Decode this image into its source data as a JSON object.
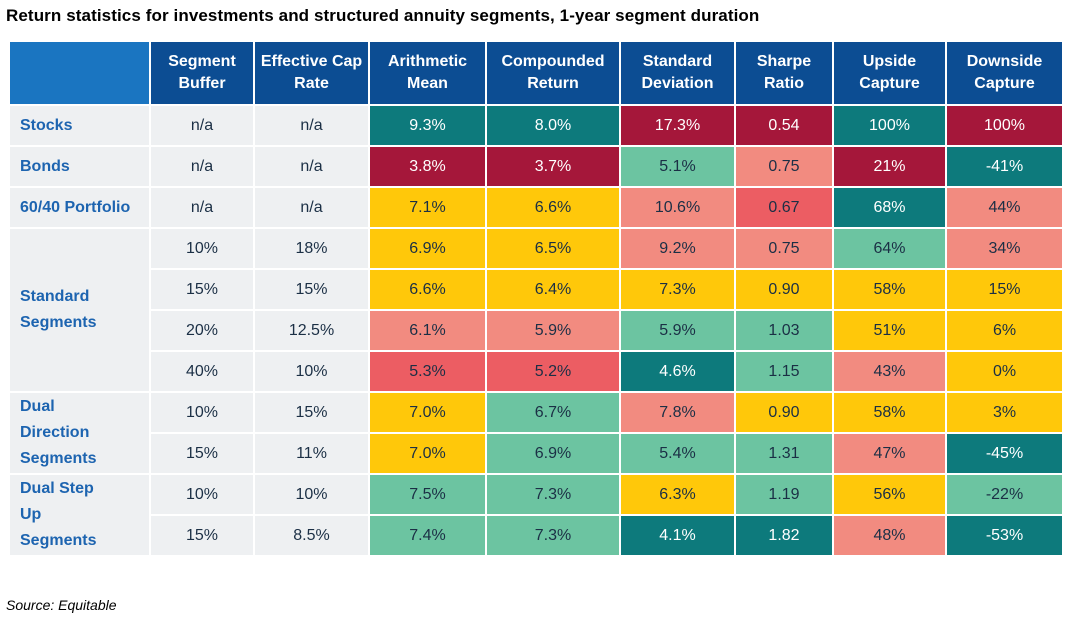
{
  "title": "Return statistics for investments and structured annuity segments, 1-year segment duration",
  "source": "Source: Equitable",
  "colors": {
    "header_bg": "#0c4d93",
    "corner_bg": "#1a75c1",
    "row_label_bg": "#eef0f2",
    "label_text": "#1d64b0",
    "best": "#0d7a7c",
    "good": "#6cc4a1",
    "mid": "#ffc80a",
    "poor": "#f28b80",
    "worse": "#ec5d63",
    "worst": "#a5173a"
  },
  "chart_data": {
    "type": "table",
    "columns": [
      "",
      "Segment Buffer",
      "Effective Cap Rate",
      "Arithmetic Mean",
      "Compounded Return",
      "Standard Deviation",
      "Sharpe Ratio",
      "Upside Capture",
      "Downside Capture"
    ],
    "groups": [
      {
        "label": "Stocks",
        "rows": [
          {
            "cells": [
              "n/a",
              "n/a",
              "9.3%",
              "8.0%",
              "17.3%",
              "0.54",
              "100%",
              "100%"
            ],
            "shades": [
              "plain",
              "plain",
              "best",
              "best",
              "worst",
              "worst",
              "best",
              "worst"
            ]
          }
        ]
      },
      {
        "label": "Bonds",
        "rows": [
          {
            "cells": [
              "n/a",
              "n/a",
              "3.8%",
              "3.7%",
              "5.1%",
              "0.75",
              "21%",
              "-41%"
            ],
            "shades": [
              "plain",
              "plain",
              "worst",
              "worst",
              "good",
              "poor",
              "worst",
              "best"
            ]
          }
        ]
      },
      {
        "label": "60/40 Portfolio",
        "rows": [
          {
            "cells": [
              "n/a",
              "n/a",
              "7.1%",
              "6.6%",
              "10.6%",
              "0.67",
              "68%",
              "44%"
            ],
            "shades": [
              "plain",
              "plain",
              "mid",
              "mid",
              "poor",
              "worse",
              "best",
              "poor"
            ]
          }
        ]
      },
      {
        "label": "Standard Segments",
        "rows": [
          {
            "cells": [
              "10%",
              "18%",
              "6.9%",
              "6.5%",
              "9.2%",
              "0.75",
              "64%",
              "34%"
            ],
            "shades": [
              "plain",
              "plain",
              "mid",
              "mid",
              "poor",
              "poor",
              "good",
              "poor"
            ]
          },
          {
            "cells": [
              "15%",
              "15%",
              "6.6%",
              "6.4%",
              "7.3%",
              "0.90",
              "58%",
              "15%"
            ],
            "shades": [
              "plain",
              "plain",
              "mid",
              "mid",
              "mid",
              "mid",
              "mid",
              "mid"
            ]
          },
          {
            "cells": [
              "20%",
              "12.5%",
              "6.1%",
              "5.9%",
              "5.9%",
              "1.03",
              "51%",
              "6%"
            ],
            "shades": [
              "plain",
              "plain",
              "poor",
              "poor",
              "good",
              "good",
              "mid",
              "mid"
            ]
          },
          {
            "cells": [
              "40%",
              "10%",
              "5.3%",
              "5.2%",
              "4.6%",
              "1.15",
              "43%",
              "0%"
            ],
            "shades": [
              "plain",
              "plain",
              "worse",
              "worse",
              "best",
              "good",
              "poor",
              "mid"
            ]
          }
        ]
      },
      {
        "label": "Dual Direction Segments",
        "rows": [
          {
            "cells": [
              "10%",
              "15%",
              "7.0%",
              "6.7%",
              "7.8%",
              "0.90",
              "58%",
              "3%"
            ],
            "shades": [
              "plain",
              "plain",
              "mid",
              "good",
              "poor",
              "mid",
              "mid",
              "mid"
            ]
          },
          {
            "cells": [
              "15%",
              "11%",
              "7.0%",
              "6.9%",
              "5.4%",
              "1.31",
              "47%",
              "-45%"
            ],
            "shades": [
              "plain",
              "plain",
              "mid",
              "good",
              "good",
              "good",
              "poor",
              "best"
            ]
          }
        ]
      },
      {
        "label": "Dual Step Up Segments",
        "rows": [
          {
            "cells": [
              "10%",
              "10%",
              "7.5%",
              "7.3%",
              "6.3%",
              "1.19",
              "56%",
              "-22%"
            ],
            "shades": [
              "plain",
              "plain",
              "good",
              "good",
              "mid",
              "good",
              "mid",
              "good"
            ]
          },
          {
            "cells": [
              "15%",
              "8.5%",
              "7.4%",
              "7.3%",
              "4.1%",
              "1.82",
              "48%",
              "-53%"
            ],
            "shades": [
              "plain",
              "plain",
              "good",
              "good",
              "best",
              "best",
              "poor",
              "best"
            ]
          }
        ]
      }
    ]
  }
}
